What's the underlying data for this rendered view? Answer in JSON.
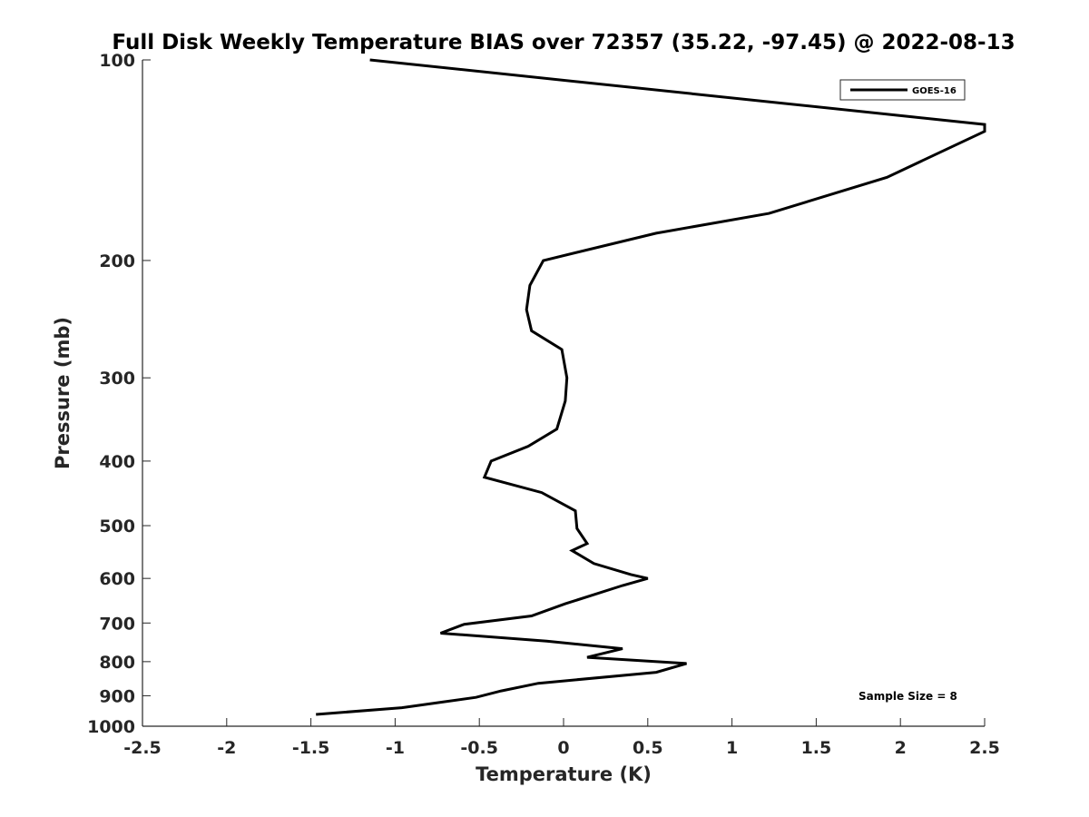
{
  "chart_data": {
    "type": "line",
    "title": "Full Disk Weekly Temperature BIAS over 72357 (35.22, -97.45) @ 2022-08-13",
    "xlabel": "Temperature (K)",
    "ylabel": "Pressure (mb)",
    "xlim": [
      -2.5,
      2.5
    ],
    "ylim": [
      100,
      1000
    ],
    "y_scale": "log",
    "y_reversed": true,
    "grid": false,
    "x_ticks": [
      "-2.5",
      "-2",
      "-1.5",
      "-1",
      "-0.5",
      "0",
      "0.5",
      "1",
      "1.5",
      "2",
      "2.5"
    ],
    "y_ticks": [
      "100",
      "200",
      "300",
      "400",
      "500",
      "600",
      "700",
      "800",
      "900",
      "1000"
    ],
    "legend": {
      "placement": "top-right",
      "entries": [
        "GOES-16"
      ]
    },
    "annotation": "Sample Size = 8",
    "series": [
      {
        "name": "GOES-16",
        "color": "#000000",
        "points": [
          [
            -1.15,
            100
          ],
          [
            2.5,
            125
          ],
          [
            2.5,
            128
          ],
          [
            1.92,
            150
          ],
          [
            1.22,
            170
          ],
          [
            0.55,
            182
          ],
          [
            -0.12,
            200
          ],
          [
            -0.2,
            218
          ],
          [
            -0.22,
            237
          ],
          [
            -0.19,
            255
          ],
          [
            -0.01,
            272
          ],
          [
            0.02,
            300
          ],
          [
            0.01,
            325
          ],
          [
            -0.04,
            358
          ],
          [
            -0.21,
            380
          ],
          [
            -0.43,
            400
          ],
          [
            -0.47,
            423
          ],
          [
            -0.13,
            446
          ],
          [
            0.07,
            475
          ],
          [
            0.08,
            505
          ],
          [
            0.14,
            532
          ],
          [
            0.05,
            545
          ],
          [
            0.18,
            570
          ],
          [
            0.4,
            592
          ],
          [
            0.5,
            600
          ],
          [
            0.35,
            615
          ],
          [
            0.01,
            655
          ],
          [
            -0.19,
            683
          ],
          [
            -0.59,
            703
          ],
          [
            -0.73,
            725
          ],
          [
            -0.1,
            745
          ],
          [
            0.35,
            765
          ],
          [
            0.14,
            788
          ],
          [
            0.73,
            805
          ],
          [
            0.55,
            830
          ],
          [
            -0.15,
            862
          ],
          [
            -0.37,
            885
          ],
          [
            -0.52,
            905
          ],
          [
            -0.72,
            920
          ],
          [
            -0.96,
            938
          ],
          [
            -1.47,
            960
          ]
        ]
      }
    ]
  }
}
